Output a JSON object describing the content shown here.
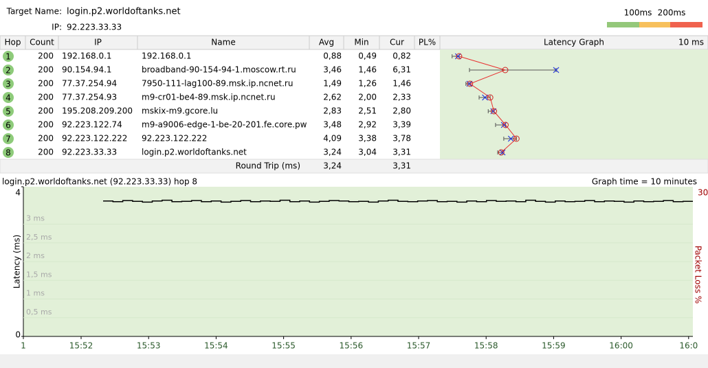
{
  "header": {
    "target_label": "Target Name:",
    "target": "login.p2.worldoftanks.net",
    "ip_label": "IP:",
    "ip": "92.223.33.33",
    "legend": [
      "100ms",
      "200ms"
    ]
  },
  "table": {
    "columns": [
      "Hop",
      "Count",
      "IP",
      "Name",
      "Avg",
      "Min",
      "Cur",
      "PL%",
      "Latency Graph",
      "10 ms"
    ],
    "rows": [
      [
        "1",
        "200",
        "192.168.0.1",
        "192.168.0.1",
        "0,88",
        "0,49",
        "0,82"
      ],
      [
        "2",
        "200",
        "90.154.94.1",
        "broadband-90-154-94-1.moscow.rt.ru",
        "3,46",
        "1,46",
        "6,31"
      ],
      [
        "3",
        "200",
        "77.37.254.94",
        "7950-111-lag100-89.msk.ip.ncnet.ru",
        "1,49",
        "1,26",
        "1,46"
      ],
      [
        "4",
        "200",
        "77.37.254.93",
        "m9-cr01-be4-89.msk.ip.ncnet.ru",
        "2,62",
        "2,00",
        "2,33"
      ],
      [
        "5",
        "200",
        "195.208.209.200",
        "mskix-m9.gcore.lu",
        "2,83",
        "2,51",
        "2,80"
      ],
      [
        "6",
        "200",
        "92.223.122.74",
        "m9-a9006-edge-1-be-20-201.fe.core.pw",
        "3,48",
        "2,92",
        "3,39"
      ],
      [
        "7",
        "200",
        "92.223.122.222",
        "92.223.122.222",
        "4,09",
        "3,38",
        "3,78"
      ],
      [
        "8",
        "200",
        "92.223.33.33",
        "login.p2.worldoftanks.net",
        "3,24",
        "3,04",
        "3,31"
      ]
    ],
    "round_trip": {
      "label": "Round Trip (ms)",
      "avg": "3,24",
      "cur": "3,31"
    }
  },
  "graph": {
    "title": "login.p2.worldoftanks.net (92.223.33.33) hop 8",
    "graph_time": "Graph time = 10 minutes",
    "y_label": "Latency (ms)",
    "y2_label": "Packet Loss %",
    "y2_top": "30",
    "ylim": [
      0,
      4
    ],
    "axis_ticks": [
      4,
      0
    ],
    "yticks": [
      {
        "value": 3,
        "label": "3 ms"
      },
      {
        "value": 2.5,
        "label": "2,5 ms"
      },
      {
        "value": 2,
        "label": "2 ms"
      },
      {
        "value": 1.5,
        "label": "1,5 ms"
      },
      {
        "value": 1,
        "label": "1 ms"
      },
      {
        "value": 0.5,
        "label": "0,5 ms"
      }
    ],
    "xticks": [
      "1",
      "15:52",
      "15:53",
      "15:54",
      "15:55",
      "15:56",
      "15:57",
      "15:58",
      "15:59",
      "16:00",
      "16:0"
    ],
    "trace": [
      3.62,
      3.6,
      3.63,
      3.61,
      3.59,
      3.62,
      3.64,
      3.6,
      3.61,
      3.63,
      3.6,
      3.62,
      3.59,
      3.61,
      3.63,
      3.6,
      3.62,
      3.61,
      3.64,
      3.6,
      3.62,
      3.59,
      3.61,
      3.63,
      3.62,
      3.6,
      3.61,
      3.59,
      3.62,
      3.64,
      3.61,
      3.6,
      3.62,
      3.63,
      3.6,
      3.61,
      3.59,
      3.62,
      3.6,
      3.63,
      3.61,
      3.62,
      3.6,
      3.64,
      3.61,
      3.59,
      3.62,
      3.6,
      3.61,
      3.63,
      3.6,
      3.62,
      3.61,
      3.59,
      3.62,
      3.6,
      3.61,
      3.63,
      3.6,
      3.61
    ]
  }
}
